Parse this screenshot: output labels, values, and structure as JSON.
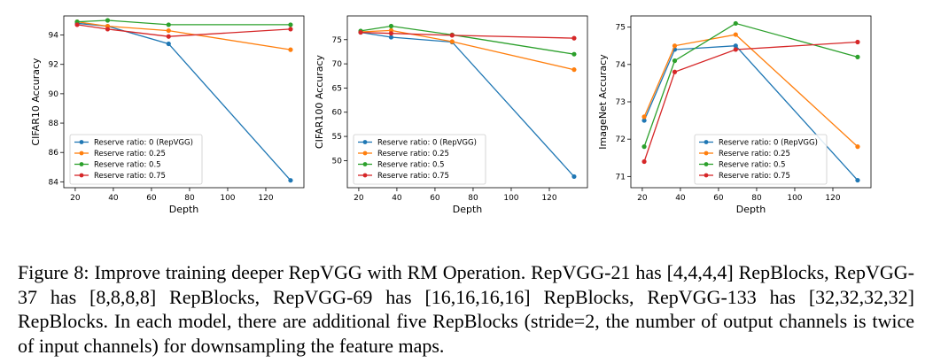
{
  "colors": {
    "series": [
      "#1f77b4",
      "#ff7f0e",
      "#2ca02c",
      "#d62728"
    ]
  },
  "chart_data": [
    {
      "type": "line",
      "xlabel": "Depth",
      "ylabel": "CIFAR10 Accuracy",
      "xlim": [
        14,
        140
      ],
      "ylim": [
        83.6,
        95.3
      ],
      "xticks": [
        20,
        40,
        60,
        80,
        100,
        120
      ],
      "yticks": [
        84,
        86,
        88,
        90,
        92,
        94
      ],
      "x": [
        21,
        37,
        69,
        133
      ],
      "legend_position": "lower-left",
      "series": [
        {
          "name": "Reserve ratio: 0 (RepVGG)",
          "values": [
            94.8,
            94.6,
            93.4,
            84.1
          ]
        },
        {
          "name": "Reserve ratio: 0.25",
          "values": [
            94.9,
            94.6,
            94.3,
            93.0
          ]
        },
        {
          "name": "Reserve ratio: 0.5",
          "values": [
            94.9,
            95.0,
            94.7,
            94.7
          ]
        },
        {
          "name": "Reserve ratio: 0.75",
          "values": [
            94.7,
            94.4,
            93.9,
            94.4
          ]
        }
      ]
    },
    {
      "type": "line",
      "xlabel": "Depth",
      "ylabel": "CIFAR100 Accuracy",
      "xlim": [
        14,
        140
      ],
      "ylim": [
        44.4,
        79.9
      ],
      "xticks": [
        20,
        40,
        60,
        80,
        100,
        120
      ],
      "yticks": [
        50,
        55,
        60,
        65,
        70,
        75
      ],
      "x": [
        21,
        37,
        69,
        133
      ],
      "legend_position": "lower-left",
      "series": [
        {
          "name": "Reserve ratio: 0 (RepVGG)",
          "values": [
            76.5,
            75.5,
            74.5,
            46.7
          ]
        },
        {
          "name": "Reserve ratio: 0.25",
          "values": [
            76.6,
            76.9,
            74.6,
            68.8
          ]
        },
        {
          "name": "Reserve ratio: 0.5",
          "values": [
            76.8,
            77.8,
            76.0,
            72.0
          ]
        },
        {
          "name": "Reserve ratio: 0.75",
          "values": [
            76.5,
            76.3,
            75.9,
            75.3
          ]
        }
      ]
    },
    {
      "type": "line",
      "xlabel": "Depth",
      "ylabel": "ImageNet Accuracy",
      "xlim": [
        14,
        140
      ],
      "ylim": [
        70.7,
        75.3
      ],
      "xticks": [
        20,
        40,
        60,
        80,
        100,
        120
      ],
      "yticks": [
        71,
        72,
        73,
        74,
        75
      ],
      "x": [
        21,
        37,
        69,
        133
      ],
      "legend_position": "lower-center",
      "series": [
        {
          "name": "Reserve ratio: 0 (RepVGG)",
          "values": [
            72.5,
            74.4,
            74.5,
            70.9
          ]
        },
        {
          "name": "Reserve ratio: 0.25",
          "values": [
            72.6,
            74.5,
            74.8,
            71.8
          ]
        },
        {
          "name": "Reserve ratio: 0.5",
          "values": [
            71.8,
            74.1,
            75.1,
            74.2
          ]
        },
        {
          "name": "Reserve ratio: 0.75",
          "values": [
            71.4,
            73.8,
            74.4,
            74.6
          ]
        }
      ]
    }
  ],
  "caption": {
    "label": "Figure 8:",
    "text": "Improve training deeper RepVGG with RM Operation. RepVGG-21 has [4,4,4,4] RepBlocks, RepVGG-37 has [8,8,8,8] RepBlocks, RepVGG-69 has [16,16,16,16] RepBlocks, RepVGG-133 has [32,32,32,32] RepBlocks. In each model, there are additional five RepBlocks (stride=2, the number of output channels is twice of input channels) for downsampling the feature maps."
  }
}
